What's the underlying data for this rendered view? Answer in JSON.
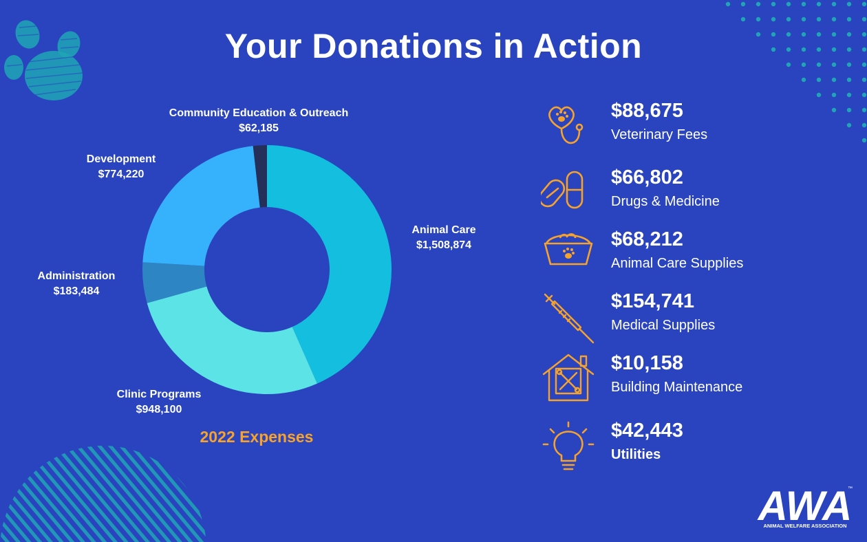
{
  "title": "Your Donations in Action",
  "colors": {
    "background": "#2944be",
    "accent": "#f7a32b",
    "teal": "#1fa6b5"
  },
  "chart_data": {
    "type": "pie",
    "title": "2022 Expenses",
    "donut": true,
    "start": "top",
    "direction": "clockwise",
    "slices": [
      {
        "name": "Animal Care",
        "value_label": "$1,508,874",
        "value": 1508874,
        "color": "#13bedf"
      },
      {
        "name": "Clinic Programs",
        "value_label": "$948,100",
        "value": 948100,
        "color": "#5be3e6"
      },
      {
        "name": "Administration",
        "value_label": "$183,484",
        "value": 183484,
        "color": "#2e85c4"
      },
      {
        "name": "Development",
        "value_label": "$774,220",
        "value": 774220,
        "color": "#36b1fb"
      },
      {
        "name": "Community Education & Outreach",
        "value_label": "$62,185",
        "value": 62185,
        "color": "#24305a"
      }
    ]
  },
  "expenses": [
    {
      "amount": "$88,675",
      "label": "Veterinary Fees",
      "icon": "stethoscope-paw-icon"
    },
    {
      "amount": "$66,802",
      "label": "Drugs & Medicine",
      "icon": "pills-icon"
    },
    {
      "amount": "$68,212",
      "label": "Animal Care Supplies",
      "icon": "pet-food-bowl-icon"
    },
    {
      "amount": "$154,741",
      "label": "Medical Supplies",
      "icon": "syringe-icon"
    },
    {
      "amount": "$10,158",
      "label": "Building Maintenance",
      "icon": "house-tools-icon"
    },
    {
      "amount": "$42,443",
      "label": "Utilities",
      "icon": "lightbulb-icon"
    }
  ],
  "logo": {
    "letters": "AWA",
    "name": "ANIMAL WELFARE ASSOCIATION",
    "tm": "™"
  }
}
